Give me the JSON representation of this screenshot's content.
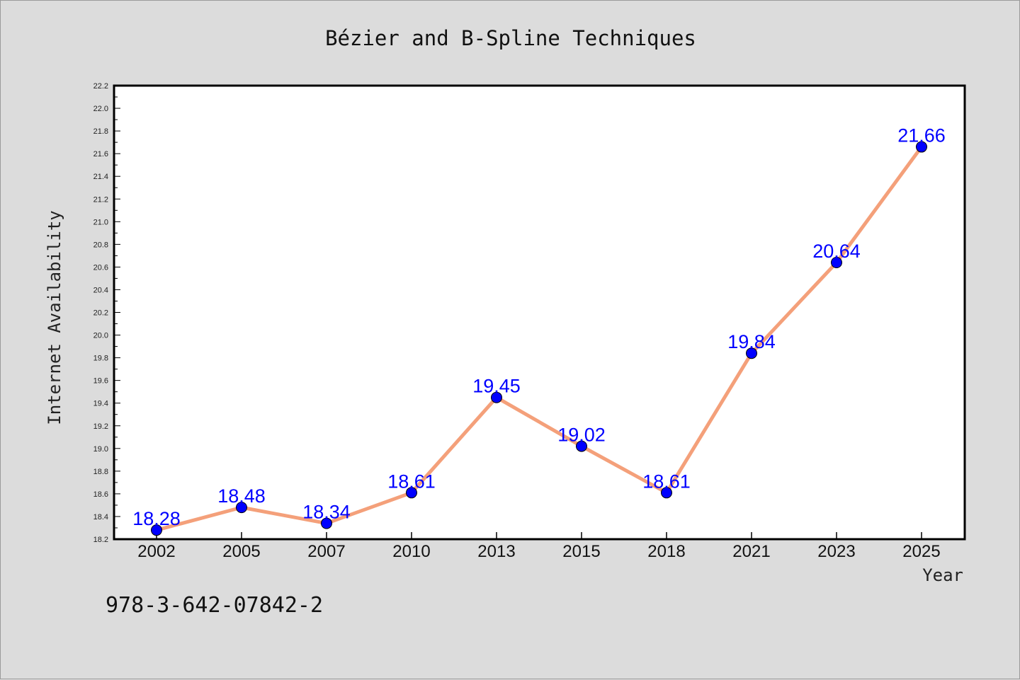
{
  "chart_data": {
    "type": "line",
    "title": "Bézier and B-Spline Techniques",
    "xlabel": "Year",
    "ylabel": "Internet Availability",
    "categories": [
      "2002",
      "2005",
      "2007",
      "2010",
      "2013",
      "2015",
      "2018",
      "2021",
      "2023",
      "2025"
    ],
    "series": [
      {
        "values": [
          18.28,
          18.48,
          18.34,
          18.61,
          19.45,
          19.02,
          18.61,
          19.84,
          20.64,
          21.66
        ],
        "data_labels": [
          "18.28",
          "18.48",
          "18.34",
          "18.61",
          "19.45",
          "19.02",
          "18.61",
          "19.84",
          "20.64",
          "21.66"
        ],
        "line_color": "#f4a07a",
        "marker_color": "#0000ff"
      }
    ],
    "ylim": [
      18.2,
      22.2
    ],
    "yticks": [
      "18.2",
      "18.4",
      "18.6",
      "18.8",
      "19.0",
      "19.2",
      "19.4",
      "19.6",
      "19.8",
      "20.0",
      "20.2",
      "20.4",
      "20.6",
      "20.8",
      "21.0",
      "21.2",
      "21.4",
      "21.6",
      "21.8",
      "22.0",
      "22.2"
    ],
    "grid": false,
    "legend": "none"
  },
  "footer": {
    "isbn": "978-3-642-07842-2"
  },
  "colors": {
    "background": "#dcdcdc",
    "plot_background": "#ffffff",
    "line": "#f4a07a",
    "marker": "#0000ff",
    "data_label": "#0000ff"
  }
}
